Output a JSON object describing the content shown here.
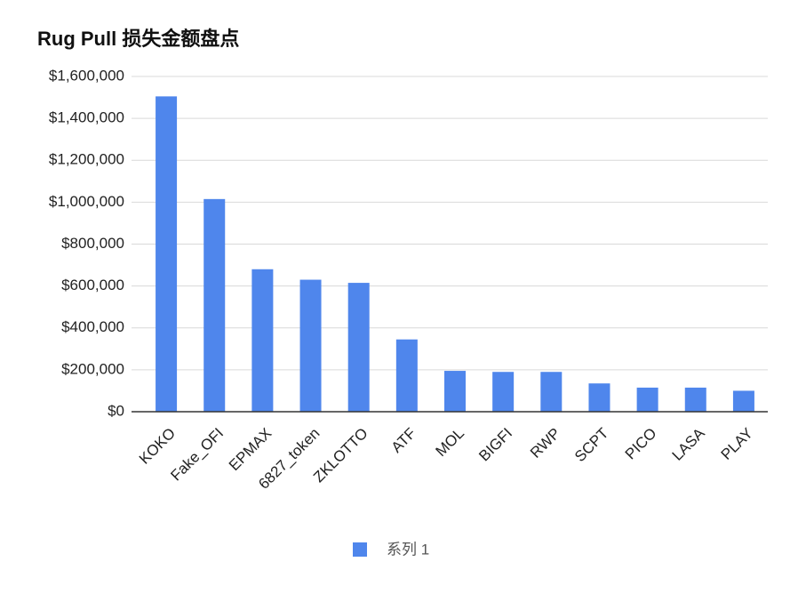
{
  "chart_data": {
    "type": "bar",
    "title": "Rug Pull 损失金额盘点",
    "categories": [
      "KOKO",
      "Fake_OFI",
      "EPMAX",
      "6827_token",
      "ZKLOTTO",
      "ATF",
      "MOL",
      "BIGFI",
      "RWP",
      "SCPT",
      "PICO",
      "LASA",
      "PLAY"
    ],
    "series": [
      {
        "name": "系列 1",
        "color": "#4f86ec",
        "values": [
          1505000,
          1015000,
          680000,
          630000,
          615000,
          345000,
          195000,
          190000,
          190000,
          135000,
          115000,
          115000,
          100000
        ]
      }
    ],
    "ylim": [
      0,
      1600000
    ],
    "yticks": [
      {
        "value": 0,
        "label": "$0"
      },
      {
        "value": 200000,
        "label": "$200,000"
      },
      {
        "value": 400000,
        "label": "$400,000"
      },
      {
        "value": 600000,
        "label": "$600,000"
      },
      {
        "value": 800000,
        "label": "$800,000"
      },
      {
        "value": 1000000,
        "label": "$1,000,000"
      },
      {
        "value": 1200000,
        "label": "$1,200,000"
      },
      {
        "value": 1400000,
        "label": "$1,400,000"
      },
      {
        "value": 1600000,
        "label": "$1,600,000"
      }
    ],
    "grid": true,
    "legend": "bottom"
  }
}
